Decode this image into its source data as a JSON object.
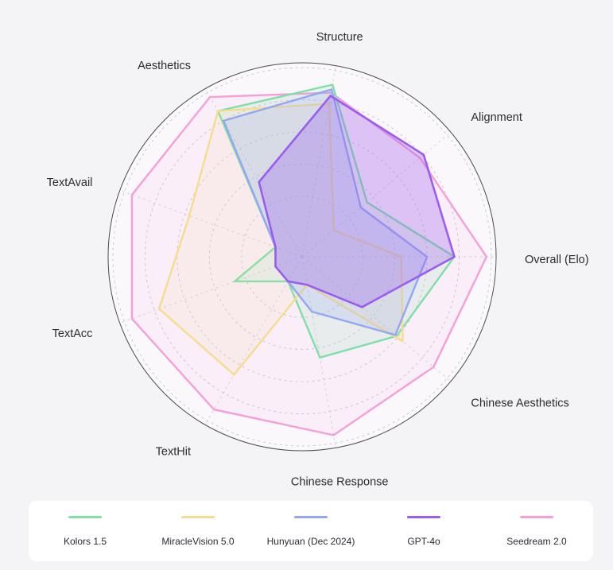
{
  "chart_data": {
    "type": "radar",
    "axes": [
      "Structure",
      "Alignment",
      "Overall (Elo)",
      "Chinese Aesthetics",
      "Chinese Response",
      "TextHit",
      "TextAcc",
      "TextAvail",
      "Aesthetics"
    ],
    "rlim": [
      0,
      1
    ],
    "grid": true,
    "legend_position": "bottom",
    "series": [
      {
        "name": "Kolors 1.5",
        "color": "#7ee0a8",
        "values": [
          0.91,
          0.35,
          0.77,
          0.59,
          0.46,
          0.0,
          0.27,
          0.0,
          0.87
        ]
      },
      {
        "name": "MiracleVision 5.0",
        "color": "#f6dc8d",
        "values": [
          0.79,
          0.08,
          0.44,
          0.64,
          0.0,
          0.67,
          0.77,
          0.57,
          0.87
        ]
      },
      {
        "name": "Hunyuan (Dec 2024)",
        "color": "#93a7f2",
        "values": [
          0.88,
          0.3,
          0.6,
          0.58,
          0.17,
          0.0,
          0.0,
          0.0,
          0.8
        ]
      },
      {
        "name": "GPT-4o",
        "color": "#9b5cf0",
        "values": [
          0.84,
          0.81,
          0.77,
          0.31,
          0.0,
          0.0,
          0.0,
          0.0,
          0.36
        ]
      },
      {
        "name": "Seedream 2.0",
        "color": "#f59fd8",
        "values": [
          0.86,
          0.78,
          0.97,
          0.89,
          0.95,
          0.92,
          0.95,
          0.95,
          0.97
        ]
      }
    ]
  }
}
